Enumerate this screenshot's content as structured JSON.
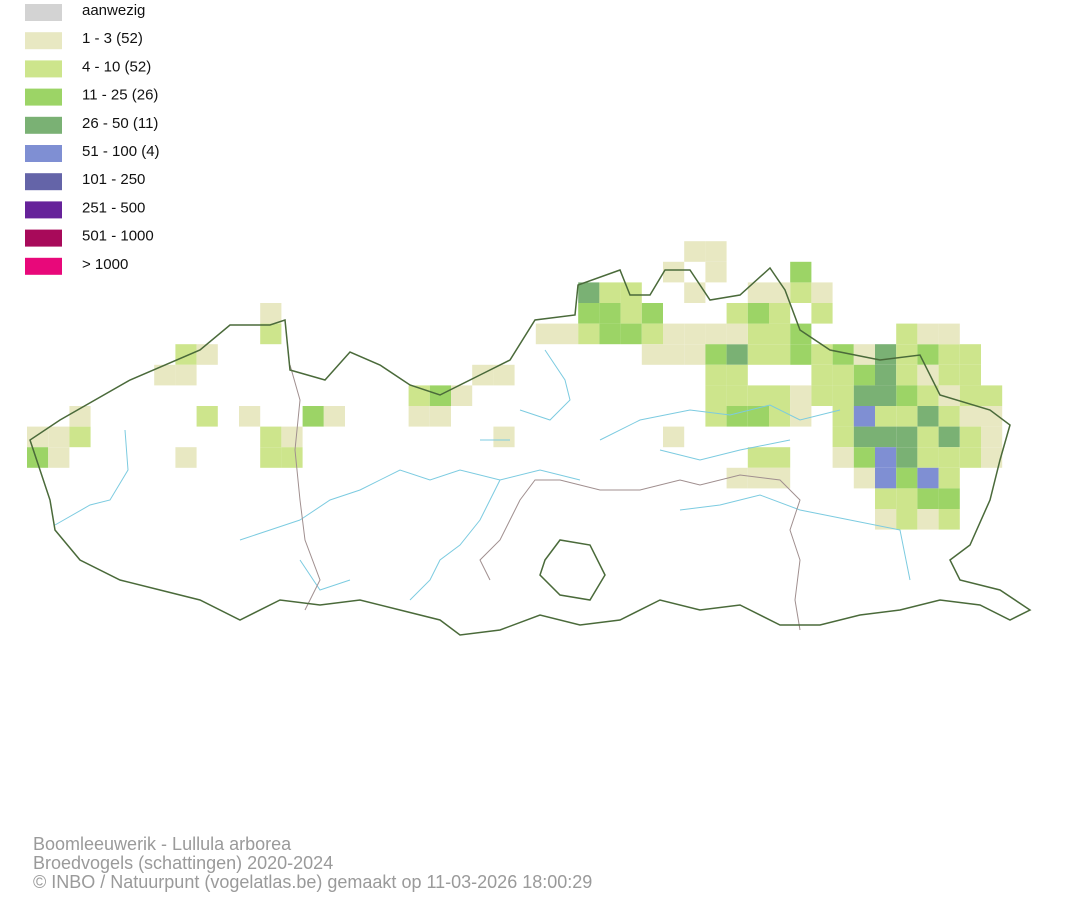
{
  "legend": {
    "items": [
      {
        "label": "aanwezig",
        "color": "#d3d3d3"
      },
      {
        "label": "1 - 3 (52)",
        "color": "#e8e8c2"
      },
      {
        "label": "4 - 10 (52)",
        "color": "#cde58c"
      },
      {
        "label": "11 - 25 (26)",
        "color": "#9cd466"
      },
      {
        "label": "26 - 50 (11)",
        "color": "#7ab174"
      },
      {
        "label": "51 - 100 (4)",
        "color": "#7f8fd3"
      },
      {
        "label": "101 - 250",
        "color": "#6464a8"
      },
      {
        "label": "251 - 500",
        "color": "#66229a"
      },
      {
        "label": "501 - 1000",
        "color": "#a80a5a"
      },
      {
        "label": "> 1000",
        "color": "#e8087a"
      }
    ]
  },
  "footer": {
    "lines": [
      "Boomleeuwerik - Lullula arborea",
      "Broedvogels (schattingen) 2020-2024",
      "© INBO / Natuurpunt (vogelatlas.be) gemaakt op 11-03-2026 18:00:29"
    ]
  }
}
